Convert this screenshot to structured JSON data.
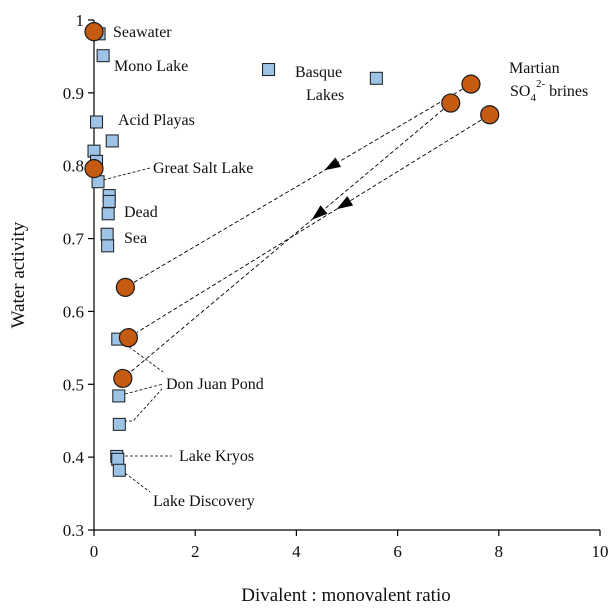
{
  "chart_data": {
    "type": "scatter",
    "xlabel": "Divalent : monovalent ratio",
    "ylabel": "Water activity",
    "xlim": [
      0,
      10
    ],
    "ylim": [
      0.3,
      1.0
    ],
    "x_ticks": [
      "0",
      "2",
      "4",
      "6",
      "8",
      "10"
    ],
    "y_ticks": [
      "0.3",
      "0.4",
      "0.5",
      "0.6",
      "0.7",
      "0.8",
      "0.9",
      "1"
    ],
    "grid": false,
    "colors": {
      "square_fill": "#9dc3e6",
      "circle_fill": "#c55a11",
      "marker_stroke": "#1a1a1a"
    },
    "series": [
      {
        "marker": "square",
        "points": [
          {
            "x": 0.1,
            "y": 0.981
          },
          {
            "x": 0.18,
            "y": 0.951
          },
          {
            "x": 0.05,
            "y": 0.86
          },
          {
            "x": 0.36,
            "y": 0.834
          },
          {
            "x": 0.0,
            "y": 0.82
          },
          {
            "x": 0.05,
            "y": 0.806
          },
          {
            "x": 0.08,
            "y": 0.778
          },
          {
            "x": 0.3,
            "y": 0.759
          },
          {
            "x": 0.3,
            "y": 0.751
          },
          {
            "x": 0.28,
            "y": 0.734
          },
          {
            "x": 0.26,
            "y": 0.706
          },
          {
            "x": 0.27,
            "y": 0.69
          },
          {
            "x": 3.45,
            "y": 0.932
          },
          {
            "x": 5.58,
            "y": 0.92
          },
          {
            "x": 0.47,
            "y": 0.562
          },
          {
            "x": 0.49,
            "y": 0.484
          },
          {
            "x": 0.5,
            "y": 0.445
          },
          {
            "x": 0.45,
            "y": 0.401
          },
          {
            "x": 0.47,
            "y": 0.397
          },
          {
            "x": 0.5,
            "y": 0.382
          }
        ]
      },
      {
        "marker": "circle",
        "points": [
          {
            "x": 0.0,
            "y": 0.984
          },
          {
            "x": 0.0,
            "y": 0.796
          },
          {
            "x": 0.62,
            "y": 0.633
          },
          {
            "x": 0.68,
            "y": 0.564
          },
          {
            "x": 0.57,
            "y": 0.508
          },
          {
            "x": 7.45,
            "y": 0.912
          },
          {
            "x": 7.05,
            "y": 0.886
          },
          {
            "x": 7.82,
            "y": 0.87
          }
        ]
      }
    ],
    "arrows": [
      {
        "from": [
          7.45,
          0.912
        ],
        "to": [
          0.62,
          0.633
        ]
      },
      {
        "from": [
          7.05,
          0.886
        ],
        "to": [
          0.57,
          0.508
        ]
      },
      {
        "from": [
          7.82,
          0.87
        ],
        "to": [
          0.68,
          0.564
        ]
      }
    ],
    "annotations": [
      {
        "text": "Seawater"
      },
      {
        "text": "Mono Lake"
      },
      {
        "text": "Basque"
      },
      {
        "text": "Lakes"
      },
      {
        "text": "Martian"
      },
      {
        "text": "SO",
        "sub": "4",
        "sup": "2-",
        "tail": " brines"
      },
      {
        "text": "Acid Playas"
      },
      {
        "text": "Great Salt Lake"
      },
      {
        "text": "Dead"
      },
      {
        "text": "Sea"
      },
      {
        "text": "Don Juan Pond"
      },
      {
        "text": "Lake Kryos"
      },
      {
        "text": "Lake Discovery"
      }
    ]
  }
}
